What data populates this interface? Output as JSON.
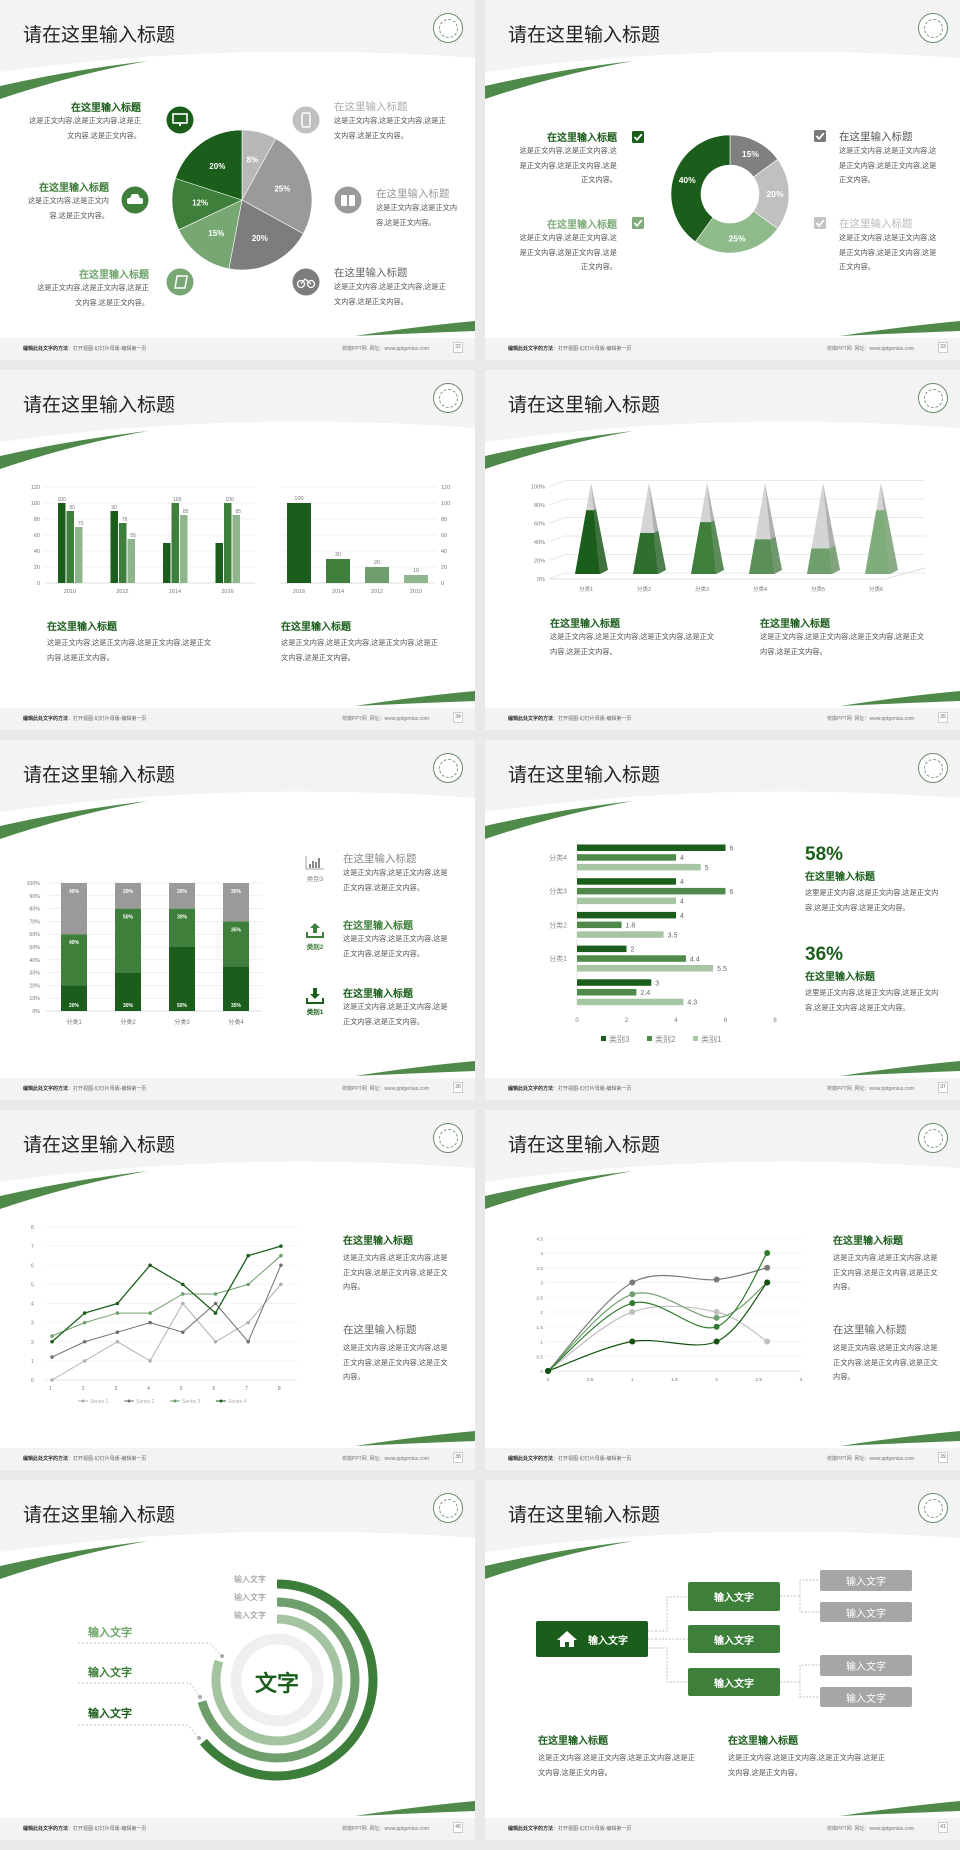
{
  "common": {
    "title": "请在这里输入标题",
    "footer_bold": "编辑此处文字的方法",
    "footer_text": "：打开视图-幻灯片母版-编辑第一页",
    "footer_site": "校徽PPT网",
    "footer_url": "网址：www.pptgenius.com",
    "logo_icon": "school-emblem-icon"
  },
  "colors": {
    "dark_green": "#1b5e1b",
    "green": "#3f7f3c",
    "light_green": "#7eac7a",
    "pale_green": "#a6c6a3",
    "grey": "#9a9a9a",
    "light_grey": "#c0c0c0",
    "background": "#f3f3f3"
  },
  "slides": [
    {
      "page": "32",
      "items": [
        {
          "title": "在这里输入标题",
          "body": "这是正文内容,这是正文内容,这是正文内容,这是正文内容。",
          "icon": "monitor-icon"
        },
        {
          "title": "在这里输入标题",
          "body": "这是正文内容,这是正文内容,这是正文内容。",
          "icon": "car-icon"
        },
        {
          "title": "在这里输入标题",
          "body": "这是正文内容,这是正文内容,这是正文内容,这是正文内容。",
          "icon": "book-icon"
        },
        {
          "title": "在这里输入标题",
          "body": "这是正文内容,这是正文内容,这是正文内容,这是正文内容。",
          "icon": "phone-icon"
        },
        {
          "title": "在这里输入标题",
          "body": "这是正文内容,这是正文内容,这是正文内容。",
          "icon": "binoculars-icon"
        },
        {
          "title": "在这里输入标题",
          "body": "这是正文内容,这是正文内容,这是正文内容,这是正文内容。",
          "icon": "bicycle-icon"
        }
      ]
    },
    {
      "page": "33",
      "items": [
        {
          "title": "在这里输入标题",
          "body": "这是正文内容,这是正文内容,这是正文内容,这是正文内容,这是正文内容。",
          "icon": "checkbox-icon"
        },
        {
          "title": "在这里输入标题",
          "body": "这是正文内容,这是正文内容,这是正文内容,这是正文内容,这是正文内容。",
          "icon": "checkbox-icon"
        },
        {
          "title": "在这里输入标题",
          "body": "这是正文内容,这是正文内容,这是正文内容,这是正文内容,这是正文内容。",
          "icon": "checkbox-icon"
        },
        {
          "title": "在这里输入标题",
          "body": "这是正文内容,这是正文内容,这是正文内容,这是正文内容,这是正文内容。",
          "icon": "checkbox-icon"
        }
      ]
    },
    {
      "page": "34",
      "items": [
        {
          "title": "在这里输入标题",
          "body": "这是正文内容,这是正文内容,这是正文内容,这是正文内容,这是正文内容。"
        },
        {
          "title": "在这里输入标题",
          "body": "这是正文内容,这是正文内容,这是正文内容,这是正文内容,这是正文内容。"
        }
      ]
    },
    {
      "page": "35",
      "items": [
        {
          "title": "在这里输入标题",
          "body": "这是正文内容,这是正文内容,这是正文内容,这是正文内容,这是正文内容。"
        },
        {
          "title": "在这里输入标题",
          "body": "这是正文内容,这是正文内容,这是正文内容,这是正文内容,这是正文内容。"
        }
      ]
    },
    {
      "page": "36",
      "items": [
        {
          "title": "在这里输入标题",
          "label": "类别3",
          "body": "这是正文内容,这是正文内容,这是正文内容,这是正文内容。",
          "icon": "bar-chart-icon"
        },
        {
          "title": "在这里输入标题",
          "label": "类别2",
          "body": "这是正文内容,这是正文内容,这是正文内容,这是正文内容。",
          "icon": "upload-icon"
        },
        {
          "title": "在这里输入标题",
          "label": "类别1",
          "body": "这是正文内容,这是正文内容,这是正文内容,这是正文内容。",
          "icon": "download-icon"
        }
      ]
    },
    {
      "page": "37",
      "items": [
        {
          "stat": "58%",
          "title": "在这里输入标题",
          "body": "这里是正文内容,这是正文内容,这是正文内容,这是正文内容,这是正文内容。"
        },
        {
          "stat": "36%",
          "title": "在这里输入标题",
          "body": "这里是正文内容,这是正文内容,这是正文内容,这是正文内容,这是正文内容。"
        }
      ]
    },
    {
      "page": "38",
      "items": [
        {
          "title": "在这里输入标题",
          "body": "这是正文内容,这是正文内容,这是正文内容,这是正文内容,这是正文内容。"
        },
        {
          "title": "在这里输入标题",
          "body": "这是正文内容,这是正文内容,这是正文内容,这是正文内容,这是正文内容。"
        }
      ]
    },
    {
      "page": "39",
      "items": [
        {
          "title": "在这里输入标题",
          "body": "这是正文内容,这是正文内容,这是正文内容,这是正文内容,这是正文内容。"
        },
        {
          "title": "在这里输入标题",
          "body": "这是正文内容,这是正文内容,这是正文内容,这是正文内容,这是正文内容。"
        }
      ]
    },
    {
      "page": "40",
      "center": "文字",
      "ring_labels": [
        "输入文字",
        "输入文字",
        "输入文字"
      ],
      "left_labels": [
        "输入文字",
        "输入文字",
        "输入文字"
      ]
    },
    {
      "page": "41",
      "root": {
        "label": "输入文字",
        "icon": "home-icon"
      },
      "mid": [
        "输入文字",
        "输入文字",
        "输入文字"
      ],
      "leaves": [
        "输入文字",
        "输入文字",
        "输入文字",
        "输入文字"
      ],
      "items": [
        {
          "title": "在这里输入标题",
          "body": "这是正文内容,这是正文内容,这是正文内容,这是正文内容,这是正文内容。"
        },
        {
          "title": "在这里输入标题",
          "body": "这是正文内容,这是正文内容,这是正文内容,这是正文内容,这是正文内容。"
        }
      ]
    }
  ],
  "chart_data": [
    {
      "type": "pie",
      "values": [
        8,
        25,
        20,
        15,
        12,
        20
      ],
      "labels": [
        "8%",
        "25%",
        "20%",
        "15%",
        "12%",
        "20%"
      ],
      "colors": [
        "#b8b8b8",
        "#9a9a9a",
        "#7d7d7d",
        "#77a874",
        "#3f7f3c",
        "#1b5e1b"
      ]
    },
    {
      "type": "pie",
      "donut": true,
      "values": [
        15,
        20,
        25,
        40
      ],
      "labels": [
        "15%",
        "20%",
        "25%",
        "40%"
      ],
      "colors": [
        "#808080",
        "#c0c0c0",
        "#8fbb8c",
        "#1b5e1b"
      ]
    },
    {
      "type": "bar",
      "categories": [
        "2010",
        "2012",
        "2014",
        "2016"
      ],
      "ylim": [
        0,
        120
      ],
      "yticks": [
        "0",
        "20",
        "40",
        "60",
        "80",
        "100",
        "120"
      ],
      "grid": true,
      "series": [
        {
          "values": [
            100,
            90,
            50,
            50
          ],
          "labels": [
            "100",
            "90",
            "",
            ""
          ]
        },
        {
          "values": [
            90,
            75,
            100,
            100
          ],
          "labels": [
            "90",
            "75",
            "100",
            "100"
          ]
        },
        {
          "values": [
            70,
            55,
            85,
            85
          ],
          "labels": [
            "70",
            "55",
            "85",
            "85"
          ]
        }
      ]
    },
    {
      "type": "bar",
      "categories": [
        "2016",
        "2014",
        "2012",
        "2010"
      ],
      "values": [
        100,
        30,
        20,
        10
      ],
      "labels": [
        "100",
        "30",
        "20",
        "10"
      ],
      "ylim": [
        0,
        120
      ],
      "yticks": [
        "0",
        "20",
        "40",
        "60",
        "80",
        "100",
        "120"
      ],
      "axis": "right",
      "grid": true
    },
    {
      "type": "bar",
      "style": "3d-pyramid",
      "categories": [
        "分类1",
        "分类2",
        "分类3",
        "分类4",
        "分类5",
        "分类6"
      ],
      "values": [
        70,
        45,
        57,
        38,
        28,
        70
      ],
      "ylim": [
        0,
        100
      ],
      "yticks": [
        "0%",
        "20%",
        "40%",
        "60%",
        "80%",
        "100%"
      ]
    },
    {
      "type": "bar",
      "stacked": true,
      "categories": [
        "分类1",
        "分类2",
        "分类3",
        "分类4"
      ],
      "ylim": [
        0,
        100
      ],
      "yticks": [
        "0%",
        "10%",
        "20%",
        "30%",
        "40%",
        "50%",
        "60%",
        "70%",
        "80%",
        "90%",
        "100%"
      ],
      "grid": true,
      "series": [
        {
          "values": [
            20,
            30,
            50,
            35
          ],
          "labels": [
            "20%",
            "30%",
            "50%",
            "35%"
          ]
        },
        {
          "values": [
            40,
            50,
            30,
            35
          ],
          "labels": [
            "40%",
            "50%",
            "30%",
            "35%"
          ]
        },
        {
          "values": [
            40,
            20,
            20,
            30
          ],
          "labels": [
            "40%",
            "20%",
            "20%",
            "30%"
          ]
        }
      ]
    },
    {
      "type": "bar",
      "orientation": "horizontal",
      "categories": [
        "分类4",
        "分类3",
        "分类2",
        "分类1",
        ""
      ],
      "xlim": [
        0,
        8
      ],
      "xticks": [
        "0",
        "2",
        "4",
        "6",
        "8"
      ],
      "legend": "bottom",
      "series": [
        {
          "name": "类别3",
          "values": [
            6,
            4,
            4,
            2,
            3
          ]
        },
        {
          "name": "类别2",
          "values": [
            4,
            6,
            1.8,
            4.4,
            2.4
          ]
        },
        {
          "name": "类别1",
          "values": [
            5,
            4,
            3.5,
            5.5,
            4.3
          ]
        }
      ]
    },
    {
      "type": "line",
      "x": [
        "1",
        "2",
        "3",
        "4",
        "5",
        "6",
        "7",
        "8"
      ],
      "ylim": [
        0,
        8
      ],
      "yticks": [
        "0",
        "1",
        "2",
        "3",
        "4",
        "5",
        "6",
        "7",
        "8"
      ],
      "grid": true,
      "legend": "bottom",
      "series": [
        {
          "name": "Series 1",
          "values": [
            0,
            1,
            2,
            1,
            4,
            2,
            3,
            5
          ]
        },
        {
          "name": "Series 2",
          "values": [
            1.2,
            2,
            2.5,
            3,
            2.5,
            4,
            2,
            6
          ]
        },
        {
          "name": "Series 3",
          "values": [
            2.3,
            3,
            3.5,
            3.5,
            4.5,
            4.5,
            5,
            6.5
          ]
        },
        {
          "name": "Series 4",
          "values": [
            2,
            3.5,
            4,
            6,
            5,
            3.5,
            6.5,
            7
          ]
        }
      ]
    },
    {
      "type": "scatter",
      "smooth": true,
      "x": [
        0,
        1,
        2,
        2.6
      ],
      "xlim": [
        0,
        3
      ],
      "ylim": [
        0,
        4.5
      ],
      "xticks": [
        "0",
        "0.5",
        "1",
        "1.5",
        "2",
        "2.5",
        "3"
      ],
      "yticks": [
        "0",
        "0.5",
        "1",
        "1.5",
        "2",
        "2.5",
        "3",
        "3.5",
        "4",
        "4.5"
      ],
      "grid": true,
      "series": [
        {
          "values": [
            0,
            2,
            2,
            1
          ]
        },
        {
          "values": [
            0,
            3,
            3.1,
            3.5
          ]
        },
        {
          "values": [
            0,
            2.6,
            1.8,
            3
          ]
        },
        {
          "values": [
            0,
            2.3,
            1.5,
            4
          ]
        },
        {
          "values": [
            0,
            1,
            1,
            3
          ]
        }
      ]
    }
  ]
}
